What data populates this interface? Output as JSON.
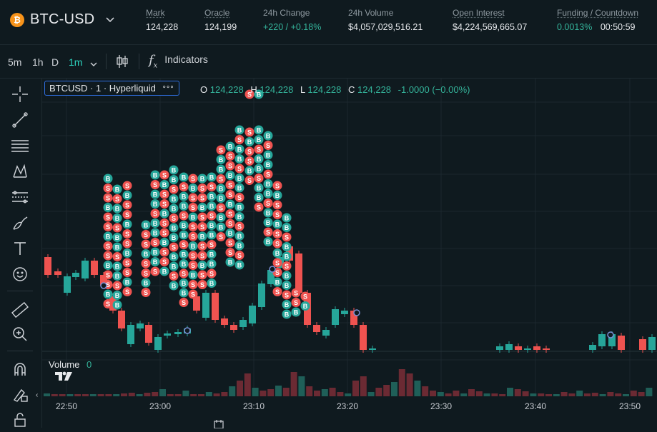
{
  "header": {
    "pair_icon": "bitcoin-icon",
    "pair": "BTC-USD",
    "stats": [
      {
        "label": "Mark",
        "value": "124,228"
      },
      {
        "label": "Oracle",
        "value": "124,199"
      },
      {
        "label": "24h Change",
        "value": "+220 / +0.18%"
      },
      {
        "label": "24h Volume",
        "value": "$4,057,029,516.21"
      },
      {
        "label": "Open Interest",
        "value": "$4,224,569,665.07"
      },
      {
        "label": "Funding / Countdown",
        "value": "0.0013%",
        "value2": "00:50:59"
      }
    ]
  },
  "toolbar": {
    "timeframes": [
      "5m",
      "1h",
      "D",
      "1m"
    ],
    "active_timeframe": "1m",
    "indicators_label": "Indicators"
  },
  "sidebar": {
    "tools": [
      "crosshair-icon",
      "trendline-icon",
      "fib-lines-icon",
      "pattern-icon",
      "measure-lines-icon",
      "brush-icon",
      "text-icon",
      "emoji-icon",
      "ruler-icon",
      "zoom-in-icon",
      "magnet-icon",
      "lock-draw-icon",
      "unlock-icon"
    ]
  },
  "chart": {
    "legend_title": "BTCUSD · 1 · Hyperliquid",
    "legend_more": "°°°",
    "ohlc": {
      "o_label": "O",
      "o": "124,228",
      "h_label": "H",
      "h": "124,228",
      "l_label": "L",
      "l": "124,228",
      "c_label": "C",
      "c": "124,228",
      "change": "-1.0000 (−0.00%)"
    },
    "volume_label": "Volume",
    "volume_value": "0",
    "time_ticks": [
      "22:50",
      "23:00",
      "23:10",
      "23:20",
      "23:30",
      "23:40",
      "23:50"
    ],
    "up_color": "#26a69a",
    "down_color": "#ef5350"
  }
}
